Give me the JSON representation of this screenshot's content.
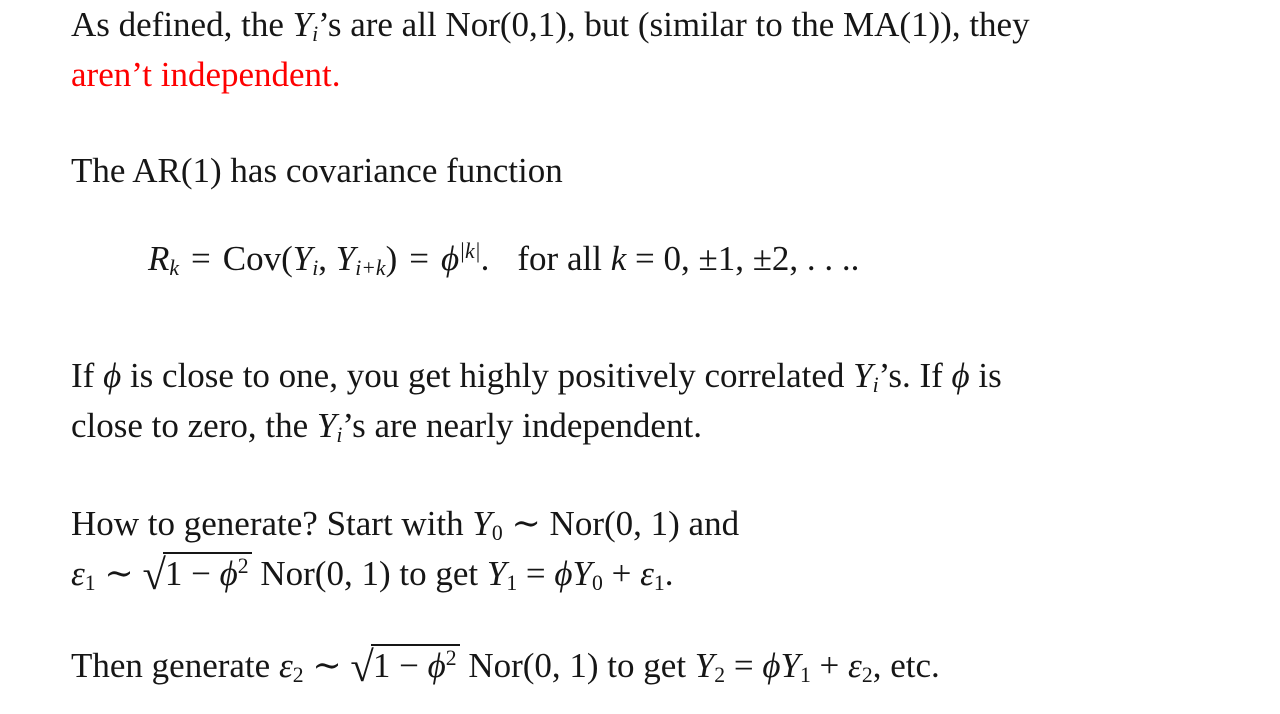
{
  "colors": {
    "background": "#ffffff",
    "text": "#161616",
    "highlight_red": "#fe0000"
  },
  "sym": {
    "Y": "Y",
    "R": "R",
    "k": "k",
    "phi": "ϕ",
    "eps": "ε",
    "radical": "√",
    "equals": "=",
    "sub_i": "i",
    "sub_k": "k",
    "sub_ik": "i+k",
    "sub_0": "0",
    "sub_1": "1",
    "sub_2": "2",
    "sup_2": "2",
    "sup_abs_k": "|k|"
  },
  "m": {
    "sim": " ∼ ",
    "eq": " = ",
    "plus": " + ",
    "rad1": "1 − "
  },
  "p1": {
    "pre": "As defined, the ",
    "post": "’s are all Nor(0,1), but (similar to the MA(1)), they",
    "red": "aren’t independent."
  },
  "p2": "The AR(1) has covariance function",
  "eq": {
    "cov": "Cov",
    "lparen": "(",
    "comma": ", ",
    "rparen": ")",
    "dot": ".",
    "for_all": "for all ",
    "tail": " = 0, ±1, ±2, . . .."
  },
  "p3": {
    "l1a": "If ",
    "l1b": " is close to one, you get highly positively correlated ",
    "l1c": "’s. If ",
    "l1d": " is",
    "l2a": "close to zero, the ",
    "l2b": "’s are nearly independent."
  },
  "p4": {
    "l1a": "How to generate? Start with ",
    "l1b": " ∼ Nor(0, 1) and",
    "l2a": " Nor(0, 1) to get ",
    "dot": "."
  },
  "p5": {
    "pre": "Then generate ",
    "mid": " Nor(0, 1) to get ",
    "tail": ", etc."
  }
}
